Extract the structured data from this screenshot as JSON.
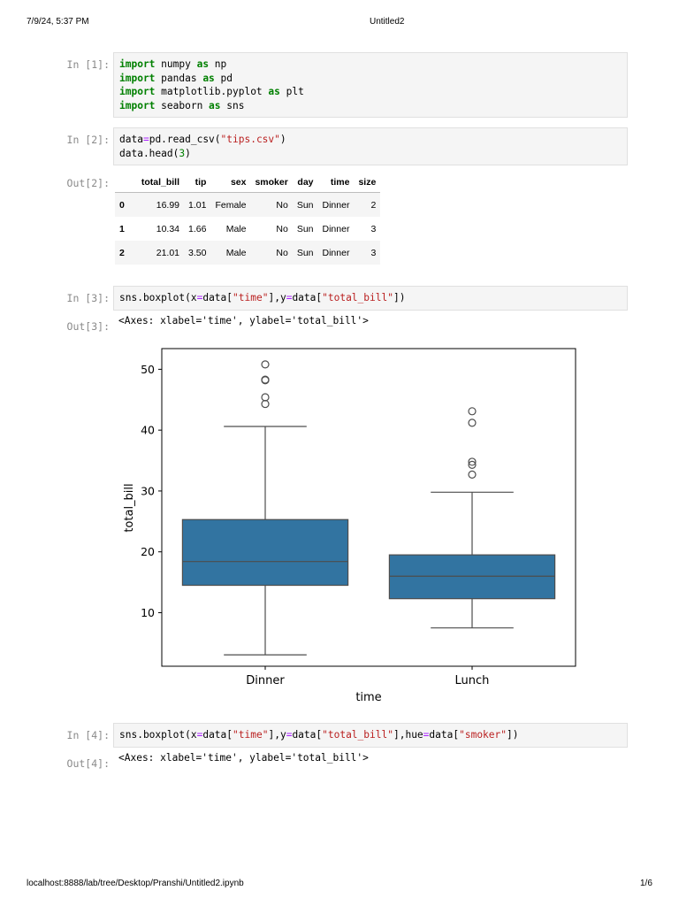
{
  "header": {
    "datetime": "7/9/24, 5:37 PM",
    "title": "Untitled2"
  },
  "footer": {
    "url": "localhost:8888/lab/tree/Desktop/Pranshi/Untitled2.ipynb",
    "page": "1/6"
  },
  "cells": {
    "c1": {
      "prompt": "In [1]:"
    },
    "c2": {
      "prompt": "In [2]:",
      "out_prompt": "Out[2]:"
    },
    "c3": {
      "prompt": "In [3]:",
      "out_prompt": "Out[3]:",
      "output_text": "<Axes: xlabel='time', ylabel='total_bill'>"
    },
    "c4": {
      "prompt": "In [4]:",
      "out_prompt": "Out[4]:",
      "output_text": "<Axes: xlabel='time', ylabel='total_bill'>"
    }
  },
  "code": {
    "import": "import",
    "as": "as",
    "numpy": " numpy ",
    "np": " np",
    "pandas": " pandas ",
    "pd": " pd",
    "mpl": " matplotlib.pyplot ",
    "plt": " plt",
    "seaborn": " seaborn ",
    "sns": " sns",
    "c2_a": "data",
    "c2_eq": "=",
    "c2_b": "pd.read_csv(",
    "c2_file": "\"tips.csv\"",
    "c2_c": ")",
    "c2_d": "data.head(",
    "c2_n": "3",
    "c2_e": ")",
    "box_fn": "sns.boxplot(",
    "x": "x",
    "y": "y",
    "hue": "hue",
    "eq": "=",
    "data_open": "data[",
    "close_br": "]",
    "comma": ",",
    "close_paren": ")",
    "time_str": "\"time\"",
    "total_bill_str": "\"total_bill\"",
    "smoker_str": "\"smoker\""
  },
  "dataframe": {
    "columns": [
      "",
      "total_bill",
      "tip",
      "sex",
      "smoker",
      "day",
      "time",
      "size"
    ],
    "rows": [
      [
        "0",
        "16.99",
        "1.01",
        "Female",
        "No",
        "Sun",
        "Dinner",
        "2"
      ],
      [
        "1",
        "10.34",
        "1.66",
        "Male",
        "No",
        "Sun",
        "Dinner",
        "3"
      ],
      [
        "2",
        "21.01",
        "3.50",
        "Male",
        "No",
        "Sun",
        "Dinner",
        "3"
      ]
    ]
  },
  "chart_data": {
    "type": "box",
    "xlabel": "time",
    "ylabel": "total_bill",
    "ylim": [
      1.2,
      53.4
    ],
    "yticks": [
      10,
      20,
      30,
      40,
      50
    ],
    "categories": [
      "Dinner",
      "Lunch"
    ],
    "color": "#3274a1",
    "boxes": [
      {
        "category": "Dinner",
        "whisker_low": 3.07,
        "q1": 14.5,
        "median": 18.4,
        "q3": 25.3,
        "whisker_high": 40.6,
        "outliers": [
          44.3,
          45.4,
          48.2,
          48.3,
          50.8
        ]
      },
      {
        "category": "Lunch",
        "whisker_low": 7.5,
        "q1": 12.3,
        "median": 16.0,
        "q3": 19.5,
        "whisker_high": 29.8,
        "outliers": [
          32.7,
          34.3,
          34.8,
          41.2,
          43.1
        ]
      }
    ]
  }
}
